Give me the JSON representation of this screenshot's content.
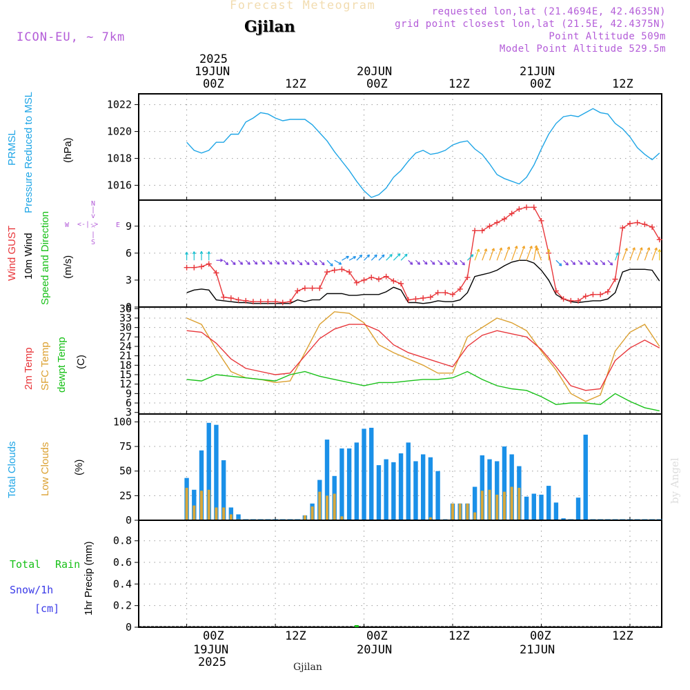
{
  "header": {
    "title": "Forecast Meteogram",
    "location": "Gjilan",
    "model": "ICON-EU, ~ 7km",
    "requested": "requested lon,lat (21.4694E, 42.4635N)",
    "grid_point": "grid point closest lon,lat (21.5E, 42.4375N)",
    "point_alt": "Point Altitude 509m",
    "model_alt": "Model Point Altitude 529.5m",
    "footer_location": "Gjilan",
    "credit": "by Angel"
  },
  "time_axis": {
    "top_year": "2025",
    "ticks": [
      "00Z",
      "12Z",
      "00Z",
      "12Z",
      "00Z",
      "12Z"
    ],
    "dates": [
      "19JUN",
      "20JUN",
      "21JUN"
    ],
    "bottom_year": "2025"
  },
  "colors": {
    "pressure": "#1ea5e6",
    "gust": "#e8363a",
    "wind10m": "#000000",
    "temp2m": "#e8363a",
    "sfc_temp": "#dba030",
    "dewpt": "#17c017",
    "total_clouds": "#1a90e8",
    "low_clouds": "#d9a83a",
    "rain": "#17c017",
    "snow": "#3a3ae8",
    "header_purple": "#b35cd8"
  },
  "panels": {
    "pressure": {
      "label1": "PRMSL",
      "label2": "Pressure Reduced to MSL",
      "unit": "(hPa)"
    },
    "wind": {
      "label1": "Wind GUST",
      "label2": "10m Wind",
      "label3": "Speed and Direction",
      "unit": "(m/s)",
      "compass_n": "N",
      "compass_s": "S",
      "compass_w": "W",
      "compass_e": "E"
    },
    "temp": {
      "label1": "2m Temp",
      "label2": "SFC Temp",
      "label3": "dewpt Temp",
      "unit": "(C)"
    },
    "clouds": {
      "label1": "Total Clouds",
      "label2": "Low Clouds",
      "unit": "(%)"
    },
    "precip": {
      "label1": "Total",
      "label2": "Rain",
      "label3": "Snow/1h",
      "label4": "[cm]",
      "unit": "1hr Precip (mm)"
    }
  },
  "chart_data": {
    "type": "line",
    "x_start_hour": 0,
    "x_end_hour": 64,
    "pressure": {
      "name": "PRMSL",
      "ylim": [
        1014.9,
        1022.8
      ],
      "ticks": [
        1016,
        1018,
        1020,
        1022
      ],
      "x": [
        0,
        1,
        2,
        3,
        4,
        5,
        6,
        7,
        8,
        9,
        10,
        11,
        12,
        13,
        14,
        15,
        16,
        17,
        18,
        19,
        20,
        21,
        22,
        23,
        24,
        25,
        26,
        27,
        28,
        29,
        30,
        31,
        32,
        33,
        34,
        35,
        36,
        37,
        38,
        39,
        40,
        41,
        42,
        43,
        44,
        45,
        46,
        47,
        48,
        49,
        50,
        51,
        52,
        53,
        54,
        55,
        56,
        57,
        58,
        59,
        60,
        61,
        62,
        63,
        64
      ],
      "values": [
        1019.2,
        1018.6,
        1018.4,
        1018.6,
        1019.2,
        1019.2,
        1019.8,
        1019.8,
        1020.7,
        1021.0,
        1021.4,
        1021.3,
        1021.0,
        1020.8,
        1020.9,
        1020.9,
        1020.9,
        1020.5,
        1019.9,
        1019.3,
        1018.5,
        1017.8,
        1017.1,
        1016.3,
        1015.6,
        1015.1,
        1015.3,
        1015.8,
        1016.6,
        1017.1,
        1017.8,
        1018.4,
        1018.6,
        1018.3,
        1018.4,
        1018.6,
        1019.0,
        1019.2,
        1019.3,
        1018.7,
        1018.3,
        1017.6,
        1016.8,
        1016.5,
        1016.3,
        1016.1,
        1016.6,
        1017.5,
        1018.7,
        1019.8,
        1020.6,
        1021.1,
        1021.2,
        1021.1,
        1021.4,
        1021.7,
        1021.4,
        1021.3,
        1020.6,
        1020.2,
        1019.6,
        1018.8,
        1018.3,
        1017.9,
        1018.4
      ]
    },
    "wind": {
      "ylim": [
        0,
        11.9
      ],
      "ticks": [
        0,
        3,
        6,
        9
      ],
      "gust": {
        "name": "Wind GUST",
        "x": [
          0,
          1,
          2,
          3,
          4,
          5,
          6,
          7,
          8,
          9,
          10,
          11,
          12,
          13,
          14,
          15,
          16,
          17,
          18,
          19,
          20,
          21,
          22,
          23,
          24,
          25,
          26,
          27,
          28,
          29,
          30,
          31,
          32,
          33,
          34,
          35,
          36,
          37,
          38,
          39,
          40,
          41,
          42,
          43,
          44,
          45,
          46,
          47,
          48,
          49,
          50,
          51,
          52,
          53,
          54,
          55,
          56,
          57,
          58,
          59,
          60,
          61,
          62,
          63,
          64
        ],
        "values": [
          4.4,
          4.4,
          4.5,
          4.8,
          3.8,
          1.1,
          1.0,
          0.8,
          0.7,
          0.6,
          0.6,
          0.6,
          0.6,
          0.5,
          0.6,
          1.8,
          2.1,
          2.1,
          2.1,
          3.9,
          4.1,
          4.2,
          3.9,
          2.7,
          3.0,
          3.3,
          3.1,
          3.4,
          2.9,
          2.6,
          0.8,
          0.9,
          1.0,
          1.1,
          1.6,
          1.6,
          1.4,
          2.0,
          3.3,
          8.5,
          8.5,
          9.0,
          9.4,
          9.8,
          10.4,
          10.9,
          11.1,
          11.1,
          9.6,
          6.0,
          1.8,
          0.9,
          0.7,
          0.7,
          1.2,
          1.4,
          1.4,
          1.7,
          3.1,
          8.8,
          9.3,
          9.4,
          9.2,
          8.9,
          7.5
        ]
      },
      "wind10m": {
        "name": "10m Wind",
        "x": [
          0,
          1,
          2,
          3,
          4,
          5,
          6,
          7,
          8,
          9,
          10,
          11,
          12,
          13,
          14,
          15,
          16,
          17,
          18,
          19,
          20,
          21,
          22,
          23,
          24,
          25,
          26,
          27,
          28,
          29,
          30,
          31,
          32,
          33,
          34,
          35,
          36,
          37,
          38,
          39,
          40,
          41,
          42,
          43,
          44,
          45,
          46,
          47,
          48,
          49,
          50,
          51,
          52,
          53,
          54,
          55,
          56,
          57,
          58,
          59,
          60,
          61,
          62,
          63,
          64
        ],
        "values": [
          1.6,
          1.9,
          2.0,
          1.9,
          0.8,
          0.7,
          0.6,
          0.5,
          0.5,
          0.4,
          0.4,
          0.4,
          0.4,
          0.4,
          0.4,
          0.8,
          0.6,
          0.8,
          0.8,
          1.5,
          1.5,
          1.5,
          1.3,
          1.3,
          1.4,
          1.4,
          1.4,
          1.7,
          2.2,
          1.9,
          0.5,
          0.5,
          0.4,
          0.5,
          0.7,
          0.6,
          0.6,
          0.8,
          1.6,
          3.4,
          3.6,
          3.8,
          4.1,
          4.6,
          5.0,
          5.2,
          5.2,
          4.9,
          4.1,
          3.0,
          1.4,
          0.9,
          0.6,
          0.5,
          0.6,
          0.7,
          0.7,
          0.9,
          1.6,
          3.9,
          4.2,
          4.2,
          4.2,
          4.1,
          2.9
        ]
      },
      "barbs_x": [
        0,
        1,
        2,
        3,
        4,
        5,
        6,
        7,
        8,
        9,
        10,
        11,
        12,
        13,
        14,
        15,
        16,
        17,
        18,
        19,
        20,
        21,
        22,
        23,
        24,
        25,
        26,
        27,
        28,
        29,
        30,
        31,
        32,
        33,
        34,
        35,
        36,
        37,
        38,
        39,
        40,
        41,
        42,
        43,
        44,
        45,
        46,
        47,
        48,
        49,
        50,
        51,
        52,
        53,
        54,
        55,
        56,
        57,
        58,
        59,
        60,
        61,
        62,
        63,
        64
      ],
      "barbs_dir_deg": [
        180,
        180,
        180,
        180,
        270,
        315,
        315,
        315,
        315,
        315,
        315,
        315,
        315,
        315,
        315,
        315,
        315,
        315,
        315,
        315,
        300,
        240,
        240,
        225,
        225,
        225,
        225,
        225,
        225,
        225,
        315,
        315,
        315,
        315,
        315,
        315,
        315,
        315,
        225,
        200,
        200,
        200,
        200,
        200,
        200,
        200,
        200,
        190,
        160,
        180,
        315,
        315,
        315,
        315,
        315,
        315,
        315,
        315,
        200,
        200,
        200,
        200,
        200,
        200,
        180
      ]
    },
    "temp": {
      "ylim": [
        2.5,
        36.5
      ],
      "ticks": [
        3,
        6,
        9,
        12,
        15,
        18,
        21,
        24,
        27,
        30,
        33,
        36
      ],
      "t2m": {
        "name": "2m Temp",
        "x": [
          0,
          2,
          4,
          6,
          8,
          10,
          12,
          14,
          16,
          18,
          20,
          22,
          24,
          26,
          28,
          30,
          32,
          34,
          36,
          38,
          40,
          42,
          44,
          46,
          48,
          50,
          52,
          54,
          56,
          58,
          60,
          62,
          64
        ],
        "values": [
          29.0,
          28.5,
          25.0,
          20.0,
          17.0,
          16.0,
          15.0,
          15.5,
          21.0,
          26.5,
          29.5,
          31.0,
          31.0,
          29.0,
          24.5,
          22.0,
          20.5,
          19.0,
          17.5,
          24.0,
          27.5,
          29.0,
          28.0,
          27.0,
          23.0,
          17.5,
          11.5,
          10.0,
          10.5,
          19.5,
          23.5,
          26.0,
          23.5
        ]
      },
      "sfc": {
        "name": "SFC Temp",
        "x": [
          0,
          2,
          4,
          6,
          8,
          10,
          12,
          14,
          16,
          18,
          20,
          22,
          24,
          26,
          28,
          30,
          32,
          34,
          36,
          38,
          40,
          42,
          44,
          46,
          48,
          50,
          52,
          54,
          56,
          58,
          60,
          62,
          64
        ],
        "values": [
          33.0,
          31.0,
          23.0,
          16.0,
          14.0,
          13.5,
          12.5,
          13.0,
          22.0,
          31.0,
          35.0,
          34.5,
          31.5,
          24.5,
          22.0,
          20.0,
          18.0,
          15.5,
          15.5,
          27.0,
          30.0,
          33.0,
          31.5,
          29.0,
          22.5,
          16.5,
          9.0,
          6.5,
          8.5,
          22.5,
          28.5,
          31.0,
          24.0
        ]
      },
      "dewpt": {
        "name": "dewpt Temp",
        "x": [
          0,
          2,
          4,
          6,
          8,
          10,
          12,
          14,
          16,
          18,
          20,
          22,
          24,
          26,
          28,
          30,
          32,
          34,
          36,
          38,
          40,
          42,
          44,
          46,
          48,
          50,
          52,
          54,
          56,
          58,
          60,
          62,
          64
        ],
        "values": [
          13.5,
          13.0,
          15.0,
          14.5,
          14.0,
          13.5,
          13.0,
          15.0,
          16.0,
          14.5,
          13.5,
          12.5,
          11.5,
          12.5,
          12.5,
          13.0,
          13.5,
          13.5,
          14.0,
          16.0,
          13.5,
          11.5,
          10.5,
          10.0,
          8.0,
          5.5,
          6.0,
          6.0,
          5.5,
          9.0,
          6.5,
          4.5,
          3.5
        ]
      }
    },
    "clouds": {
      "ylim": [
        0,
        108
      ],
      "ticks": [
        0,
        25,
        50,
        75,
        100
      ],
      "x": [
        0,
        1,
        2,
        3,
        4,
        5,
        6,
        7,
        8,
        9,
        10,
        11,
        12,
        13,
        14,
        15,
        16,
        17,
        18,
        19,
        20,
        21,
        22,
        23,
        24,
        25,
        26,
        27,
        28,
        29,
        30,
        31,
        32,
        33,
        34,
        35,
        36,
        37,
        38,
        39,
        40,
        41,
        42,
        43,
        44,
        45,
        46,
        47,
        48,
        49,
        50,
        51,
        52,
        53,
        54,
        55,
        56,
        57,
        58,
        59,
        60,
        61,
        62,
        63,
        64
      ],
      "total": [
        43,
        31,
        71,
        99,
        97,
        61,
        13,
        6,
        0,
        0,
        0,
        0,
        0,
        0,
        0,
        0,
        5,
        17,
        41,
        82,
        45,
        73,
        73,
        79,
        93,
        94,
        56,
        62,
        59,
        68,
        79,
        60,
        67,
        64,
        50,
        1,
        17,
        17,
        17,
        34,
        66,
        62,
        60,
        75,
        67,
        55,
        24,
        27,
        26,
        35,
        18,
        2,
        0,
        23,
        87,
        0,
        0,
        0,
        0,
        0,
        0,
        0,
        0,
        0,
        0
      ],
      "low": [
        33,
        15,
        30,
        31,
        13,
        13,
        6,
        1,
        0,
        0,
        0,
        0,
        0,
        0,
        0,
        0,
        5,
        14,
        29,
        25,
        27,
        4,
        0,
        0,
        0,
        0,
        0,
        0,
        0,
        0,
        0,
        0,
        0,
        3,
        0,
        0,
        17,
        17,
        17,
        8,
        30,
        31,
        26,
        29,
        34,
        33,
        0,
        0,
        0,
        0,
        0,
        0,
        0,
        0,
        0,
        0,
        0,
        0,
        0,
        0,
        0,
        0,
        0,
        0,
        0
      ]
    },
    "precip": {
      "ylim": [
        0,
        0.99
      ],
      "ticks": [
        0,
        0.2,
        0.4,
        0.6,
        0.8
      ],
      "x": [
        0,
        1,
        2,
        3,
        4,
        5,
        6,
        7,
        8,
        9,
        10,
        11,
        12,
        13,
        14,
        15,
        16,
        17,
        18,
        19,
        20,
        21,
        22,
        23,
        24,
        25,
        26,
        27,
        28,
        29,
        30,
        31,
        32,
        33,
        34,
        35,
        36,
        37,
        38,
        39,
        40,
        41,
        42,
        43,
        44,
        45,
        46,
        47,
        48,
        49,
        50,
        51,
        52,
        53,
        54,
        55,
        56,
        57,
        58,
        59,
        60,
        61,
        62,
        63,
        64
      ],
      "rain": [
        0,
        0,
        0,
        0,
        0,
        0,
        0,
        0,
        0,
        0,
        0,
        0,
        0,
        0,
        0,
        0,
        0,
        0,
        0,
        0,
        0,
        0,
        0,
        0.01,
        0,
        0,
        0,
        0,
        0,
        0,
        0,
        0,
        0,
        0,
        0,
        0,
        0,
        0,
        0,
        0,
        0,
        0,
        0,
        0,
        0,
        0,
        0,
        0,
        0,
        0,
        0,
        0,
        0,
        0,
        0,
        0,
        0,
        0,
        0,
        0,
        0,
        0,
        0,
        0,
        0
      ]
    }
  }
}
